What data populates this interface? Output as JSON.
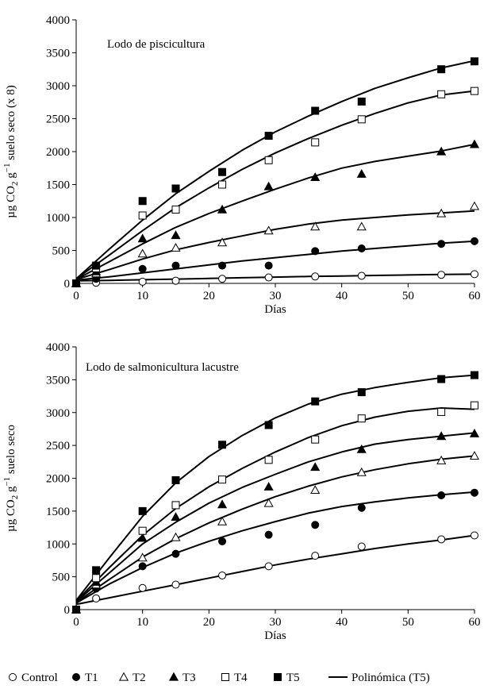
{
  "chart_data": [
    {
      "type": "scatter",
      "title": "Lodo de piscicultura",
      "xlabel": "Días",
      "ylabel": "µg CO₂ g⁻¹ suelo seco (x 8)",
      "ylabel_parts": {
        "main": "µg CO",
        "sub": "2",
        "mid": " g",
        "sup": "−1",
        "end": " suelo seco (x 8)"
      },
      "xlim": [
        0,
        60
      ],
      "ylim": [
        0,
        4000
      ],
      "xticks": [
        0,
        10,
        20,
        30,
        40,
        50,
        60
      ],
      "yticks": [
        0,
        500,
        1000,
        1500,
        2000,
        2500,
        3000,
        3500,
        4000
      ],
      "grid": false,
      "series": [
        {
          "name": "Control",
          "marker": "circle-open",
          "x": [
            0,
            3,
            10,
            15,
            22,
            29,
            36,
            43,
            55,
            60
          ],
          "y": [
            0,
            10,
            25,
            40,
            70,
            90,
            105,
            115,
            130,
            140
          ]
        },
        {
          "name": "T1",
          "marker": "circle-filled",
          "x": [
            0,
            3,
            10,
            15,
            22,
            29,
            36,
            43,
            55,
            60
          ],
          "y": [
            0,
            70,
            220,
            270,
            270,
            270,
            490,
            530,
            600,
            640
          ]
        },
        {
          "name": "T2",
          "marker": "triangle-open",
          "x": [
            0,
            3,
            10,
            15,
            22,
            29,
            36,
            43,
            55,
            60
          ],
          "y": [
            0,
            150,
            450,
            540,
            620,
            800,
            860,
            860,
            1060,
            1170
          ]
        },
        {
          "name": "T3",
          "marker": "triangle-filled",
          "x": [
            0,
            3,
            10,
            15,
            22,
            29,
            36,
            43,
            55,
            60
          ],
          "y": [
            0,
            180,
            680,
            730,
            1120,
            1470,
            1610,
            1660,
            2000,
            2110
          ]
        },
        {
          "name": "T4",
          "marker": "square-open",
          "x": [
            0,
            3,
            10,
            15,
            22,
            29,
            36,
            43,
            55,
            60
          ],
          "y": [
            0,
            230,
            1030,
            1120,
            1500,
            1870,
            2140,
            2490,
            2870,
            2920
          ]
        },
        {
          "name": "T5",
          "marker": "square-filled",
          "x": [
            0,
            3,
            10,
            15,
            22,
            29,
            36,
            43,
            55,
            60
          ],
          "y": [
            0,
            270,
            1250,
            1440,
            1690,
            2240,
            2620,
            2760,
            3250,
            3370
          ]
        }
      ],
      "fits": [
        {
          "x": [
            0,
            5,
            10,
            15,
            20,
            25,
            30,
            35,
            40,
            45,
            50,
            55,
            60
          ],
          "y": [
            40,
            45,
            55,
            65,
            75,
            85,
            95,
            105,
            112,
            120,
            128,
            135,
            140
          ]
        },
        {
          "x": [
            0,
            5,
            10,
            15,
            20,
            25,
            30,
            35,
            40,
            45,
            50,
            55,
            60
          ],
          "y": [
            50,
            100,
            160,
            220,
            280,
            340,
            390,
            440,
            490,
            530,
            570,
            610,
            640
          ]
        },
        {
          "x": [
            0,
            5,
            10,
            15,
            20,
            25,
            30,
            35,
            40,
            45,
            50,
            55,
            60
          ],
          "y": [
            60,
            210,
            370,
            510,
            620,
            720,
            820,
            900,
            960,
            1000,
            1040,
            1070,
            1100
          ]
        },
        {
          "x": [
            0,
            5,
            10,
            15,
            20,
            25,
            30,
            35,
            40,
            45,
            50,
            55,
            60
          ],
          "y": [
            60,
            330,
            600,
            850,
            1060,
            1250,
            1430,
            1600,
            1750,
            1850,
            1930,
            2010,
            2110
          ]
        },
        {
          "x": [
            0,
            5,
            10,
            15,
            20,
            25,
            30,
            35,
            40,
            45,
            50,
            55,
            60
          ],
          "y": [
            70,
            430,
            800,
            1150,
            1450,
            1730,
            1980,
            2200,
            2400,
            2580,
            2740,
            2860,
            2920
          ]
        },
        {
          "x": [
            0,
            5,
            10,
            15,
            20,
            25,
            30,
            35,
            40,
            45,
            50,
            55,
            60
          ],
          "y": [
            70,
            520,
            960,
            1360,
            1700,
            2020,
            2300,
            2540,
            2760,
            2960,
            3120,
            3270,
            3380
          ]
        }
      ]
    },
    {
      "type": "scatter",
      "title": "Lodo de salmonicultura lacustre",
      "xlabel": "Días",
      "ylabel": "µg CO₂ g⁻¹ suelo seco",
      "ylabel_parts": {
        "main": "µg CO",
        "sub": "2",
        "mid": " g",
        "sup": "−1",
        "end": " suelo seco"
      },
      "xlim": [
        0,
        60
      ],
      "ylim": [
        0,
        4000
      ],
      "xticks": [
        0,
        10,
        20,
        30,
        40,
        50,
        60
      ],
      "yticks": [
        0,
        500,
        1000,
        1500,
        2000,
        2500,
        3000,
        3500,
        4000
      ],
      "grid": false,
      "series": [
        {
          "name": "Control",
          "marker": "circle-open",
          "x": [
            0,
            3,
            10,
            15,
            22,
            29,
            36,
            43,
            55,
            60
          ],
          "y": [
            0,
            170,
            330,
            380,
            520,
            660,
            820,
            960,
            1070,
            1130
          ]
        },
        {
          "name": "T1",
          "marker": "circle-filled",
          "x": [
            0,
            3,
            10,
            15,
            22,
            29,
            36,
            43,
            55,
            60
          ],
          "y": [
            0,
            320,
            660,
            850,
            1040,
            1140,
            1290,
            1550,
            1740,
            1780
          ]
        },
        {
          "name": "T2",
          "marker": "triangle-open",
          "x": [
            0,
            3,
            10,
            15,
            22,
            29,
            36,
            43,
            55,
            60
          ],
          "y": [
            0,
            380,
            790,
            1100,
            1340,
            1620,
            1820,
            2090,
            2270,
            2340
          ]
        },
        {
          "name": "T3",
          "marker": "triangle-filled",
          "x": [
            0,
            3,
            10,
            15,
            22,
            29,
            36,
            43,
            55,
            60
          ],
          "y": [
            0,
            420,
            1090,
            1410,
            1600,
            1870,
            2170,
            2440,
            2640,
            2680
          ]
        },
        {
          "name": "T4",
          "marker": "square-open",
          "x": [
            0,
            3,
            10,
            15,
            22,
            29,
            36,
            43,
            55,
            60
          ],
          "y": [
            0,
            480,
            1200,
            1590,
            1980,
            2280,
            2590,
            2910,
            3010,
            3110
          ]
        },
        {
          "name": "T5",
          "marker": "square-filled",
          "x": [
            0,
            3,
            10,
            15,
            22,
            29,
            36,
            43,
            55,
            60
          ],
          "y": [
            0,
            600,
            1500,
            1970,
            2510,
            2810,
            3170,
            3310,
            3510,
            3570
          ]
        }
      ],
      "fits": [
        {
          "x": [
            0,
            5,
            10,
            15,
            20,
            25,
            30,
            35,
            40,
            45,
            50,
            55,
            60
          ],
          "y": [
            80,
            180,
            280,
            380,
            480,
            580,
            680,
            770,
            850,
            930,
            1000,
            1060,
            1130
          ]
        },
        {
          "x": [
            0,
            5,
            10,
            15,
            20,
            25,
            30,
            35,
            40,
            45,
            50,
            55,
            60
          ],
          "y": [
            100,
            390,
            640,
            860,
            1040,
            1200,
            1340,
            1470,
            1570,
            1640,
            1700,
            1750,
            1790
          ]
        },
        {
          "x": [
            0,
            5,
            10,
            15,
            20,
            25,
            30,
            35,
            40,
            45,
            50,
            55,
            60
          ],
          "y": [
            110,
            460,
            800,
            1080,
            1320,
            1530,
            1720,
            1880,
            2020,
            2130,
            2220,
            2290,
            2340
          ]
        },
        {
          "x": [
            0,
            5,
            10,
            15,
            20,
            25,
            30,
            35,
            40,
            45,
            50,
            55,
            60
          ],
          "y": [
            120,
            560,
            1000,
            1330,
            1620,
            1860,
            2060,
            2250,
            2400,
            2520,
            2590,
            2640,
            2690
          ]
        },
        {
          "x": [
            0,
            5,
            10,
            15,
            20,
            25,
            30,
            35,
            40,
            45,
            50,
            55,
            60
          ],
          "y": [
            130,
            640,
            1130,
            1540,
            1870,
            2150,
            2400,
            2620,
            2800,
            2930,
            3020,
            3070,
            3050
          ]
        },
        {
          "x": [
            0,
            5,
            10,
            15,
            20,
            25,
            30,
            35,
            40,
            45,
            50,
            55,
            60
          ],
          "y": [
            140,
            790,
            1420,
            1930,
            2330,
            2650,
            2920,
            3130,
            3280,
            3380,
            3460,
            3530,
            3570
          ]
        }
      ]
    }
  ],
  "legend": {
    "placement": "bottom",
    "items": [
      {
        "label": "Control",
        "marker": "circle-open"
      },
      {
        "label": "T1",
        "marker": "circle-filled"
      },
      {
        "label": "T2",
        "marker": "triangle-open"
      },
      {
        "label": "T3",
        "marker": "triangle-filled"
      },
      {
        "label": "T4",
        "marker": "square-open"
      },
      {
        "label": "T5",
        "marker": "square-filled"
      },
      {
        "label": "Polinómica (T5)",
        "marker": "line"
      }
    ]
  }
}
